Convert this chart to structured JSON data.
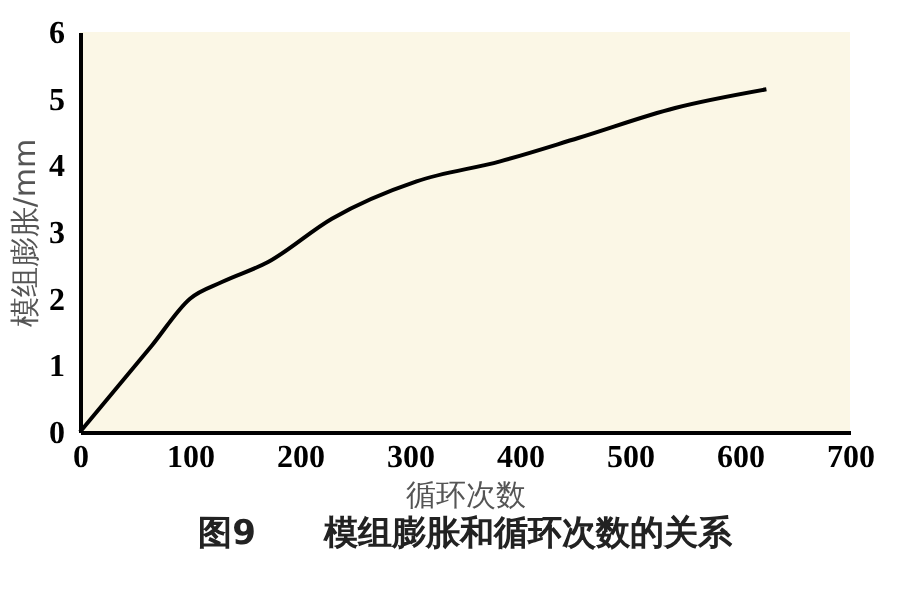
{
  "chart_data": {
    "type": "line",
    "title": "图9　　模组膨胀和循环次数的关系",
    "xlabel": "循环次数",
    "ylabel": "模组膨胀/mm",
    "x": [
      0,
      65,
      100,
      129,
      171,
      229,
      306,
      382,
      453,
      541,
      624
    ],
    "series": [
      {
        "color": "#000000",
        "values": [
          0,
          1.29,
          2.0,
          2.25,
          2.55,
          3.2,
          3.76,
          4.06,
          4.41,
          4.86,
          5.14
        ]
      }
    ],
    "xlim": [
      0,
      700
    ],
    "xticks": [
      0,
      100,
      200,
      300,
      400,
      500,
      600,
      700
    ],
    "ylim": [
      0,
      6
    ],
    "yticks": [
      0,
      1,
      2,
      3,
      4,
      5,
      6
    ],
    "grid": false,
    "legend": false,
    "marker": "none",
    "line_style": "solid"
  }
}
